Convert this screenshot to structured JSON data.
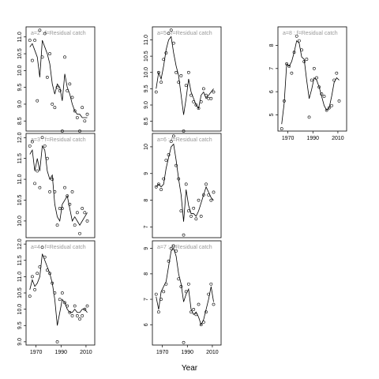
{
  "xlabel": "Year",
  "chart_data": [
    {
      "type": "line",
      "label": "a=2 : f=Residual catch",
      "x": [
        1965,
        1967,
        1969,
        1971,
        1973,
        1975,
        1977,
        1979,
        1981,
        1983,
        1985,
        1987,
        1989,
        1991,
        1993,
        1995,
        1997,
        1999,
        2001,
        2003,
        2005,
        2007,
        2009,
        2011
      ],
      "series": [
        {
          "style": "line",
          "color": "#000000",
          "values": [
            10.7,
            10.8,
            10.6,
            10.4,
            9.8,
            10.9,
            10.7,
            10.5,
            10.2,
            9.6,
            9.3,
            9.6,
            9.5,
            9.1,
            9.9,
            9.5,
            9.3,
            9.0,
            8.8,
            8.7,
            8.7,
            8.6,
            8.6,
            8.6
          ]
        },
        {
          "style": "points",
          "color": "#000000",
          "values": [
            10.9,
            10.3,
            10.9,
            9.1,
            11.2,
            10.4,
            11.1,
            9.8,
            10.5,
            9.0,
            8.9,
            9.5,
            9.4,
            8.2,
            10.4,
            9.4,
            9.6,
            9.2,
            8.8,
            8.6,
            8.2,
            8.9,
            8.5,
            8.7
          ]
        }
      ],
      "xlim": [
        1962,
        2017
      ],
      "xticks": [
        1970,
        1990,
        2010
      ],
      "ylim": [
        8.2,
        11.3
      ],
      "yticks": [
        8.5,
        {
          "value": 9,
          "label": "9.0"
        },
        9.5,
        {
          "value": 10,
          "label": "10.0"
        },
        10.5,
        {
          "value": 11,
          "label": "11.0"
        }
      ]
    },
    {
      "type": "line",
      "label": "a=3 : f=Residual catch",
      "x": [
        1965,
        1967,
        1969,
        1971,
        1973,
        1975,
        1977,
        1979,
        1981,
        1983,
        1985,
        1987,
        1989,
        1991,
        1993,
        1995,
        1997,
        1999,
        2001,
        2003,
        2005,
        2007,
        2009,
        2011
      ],
      "series": [
        {
          "style": "line",
          "color": "#000000",
          "values": [
            11.6,
            11.7,
            11.2,
            11.5,
            11.2,
            11.8,
            11.7,
            11.2,
            11.0,
            11.1,
            10.4,
            10.1,
            10.0,
            10.4,
            10.5,
            10.6,
            10.3,
            10.0,
            10.1,
            10.0,
            9.9,
            10.0,
            10.1,
            10.2
          ]
        },
        {
          "style": "points",
          "color": "#000000",
          "values": [
            11.8,
            11.9,
            10.9,
            11.2,
            10.8,
            12.0,
            11.8,
            11.5,
            10.7,
            11.0,
            10.7,
            9.9,
            10.3,
            10.3,
            10.8,
            10.6,
            10.4,
            10.7,
            9.9,
            10.2,
            9.7,
            10.3,
            10.2,
            10.0
          ]
        }
      ],
      "xlim": [
        1962,
        2017
      ],
      "xticks": [
        1970,
        1990,
        2010
      ],
      "ylim": [
        9.6,
        12.1
      ],
      "yticks": [
        {
          "value": 10,
          "label": "10.0"
        },
        10.5,
        {
          "value": 11,
          "label": "11.0"
        },
        11.5,
        {
          "value": 12,
          "label": "12.0"
        }
      ]
    },
    {
      "type": "line",
      "label": "a=4 : f=Residual catch",
      "x": [
        1965,
        1967,
        1969,
        1971,
        1973,
        1975,
        1977,
        1979,
        1981,
        1983,
        1985,
        1987,
        1989,
        1991,
        1993,
        1995,
        1997,
        1999,
        2001,
        2003,
        2005,
        2007,
        2009,
        2011
      ],
      "series": [
        {
          "style": "line",
          "color": "#000000",
          "values": [
            10.6,
            10.9,
            10.7,
            10.8,
            11.0,
            11.7,
            11.5,
            11.3,
            11.1,
            10.8,
            10.3,
            9.5,
            9.9,
            10.3,
            10.2,
            10.0,
            9.9,
            9.9,
            10.0,
            9.9,
            9.9,
            10.0,
            10.0,
            9.9
          ]
        },
        {
          "style": "points",
          "color": "#000000",
          "values": [
            10.4,
            11.0,
            10.6,
            11.1,
            11.3,
            11.9,
            11.6,
            11.2,
            11.1,
            10.8,
            10.5,
            9.0,
            10.3,
            10.5,
            10.2,
            10.1,
            9.9,
            9.8,
            10.1,
            9.8,
            9.7,
            9.8,
            10.0,
            10.1
          ]
        }
      ],
      "xlim": [
        1962,
        2017
      ],
      "xticks": [
        1970,
        1990,
        2010
      ],
      "ylim": [
        8.9,
        12.1
      ],
      "yticks": [
        {
          "value": 9,
          "label": "9.0"
        },
        9.5,
        {
          "value": 10,
          "label": "10.0"
        },
        10.5,
        {
          "value": 11,
          "label": "11.0"
        },
        11.5,
        {
          "value": 12,
          "label": "12.0"
        }
      ]
    },
    {
      "type": "line",
      "label": "a=5 : f=Residual catch",
      "x": [
        1965,
        1967,
        1969,
        1971,
        1973,
        1975,
        1977,
        1979,
        1981,
        1983,
        1985,
        1987,
        1989,
        1991,
        1993,
        1995,
        1997,
        1999,
        2001,
        2003,
        2005,
        2007,
        2009,
        2011
      ],
      "series": [
        {
          "style": "line",
          "color": "#000000",
          "values": [
            9.5,
            10.0,
            9.8,
            10.2,
            10.7,
            11.0,
            11.1,
            10.6,
            10.2,
            9.9,
            9.3,
            8.7,
            9.2,
            9.8,
            9.4,
            9.2,
            9.0,
            8.9,
            9.3,
            9.4,
            9.2,
            9.3,
            9.4,
            9.5
          ]
        },
        {
          "style": "points",
          "color": "#000000",
          "values": [
            9.4,
            10.0,
            9.7,
            10.4,
            10.6,
            11.2,
            11.3,
            10.9,
            10.0,
            9.7,
            9.9,
            8.2,
            9.6,
            10.0,
            9.3,
            9.1,
            9.0,
            8.9,
            9.1,
            9.5,
            9.3,
            9.2,
            9.2,
            9.4
          ]
        }
      ],
      "xlim": [
        1962,
        2017
      ],
      "xticks": [
        1970,
        1990,
        2010
      ],
      "ylim": [
        8.2,
        11.4
      ],
      "yticks": [
        8.5,
        {
          "value": 9,
          "label": "9.0"
        },
        9.5,
        {
          "value": 10,
          "label": "10.0"
        },
        10.5,
        {
          "value": 11,
          "label": "11.0"
        }
      ]
    },
    {
      "type": "line",
      "label": "a=6 : f=Residual catch",
      "x": [
        1965,
        1967,
        1969,
        1971,
        1973,
        1975,
        1977,
        1979,
        1981,
        1983,
        1985,
        1987,
        1989,
        1991,
        1993,
        1995,
        1997,
        1999,
        2001,
        2003,
        2005,
        2007,
        2009,
        2011
      ],
      "series": [
        {
          "style": "line",
          "color": "#000000",
          "values": [
            8.5,
            8.6,
            8.5,
            8.6,
            9.2,
            9.6,
            10.0,
            10.1,
            9.5,
            8.8,
            8.2,
            7.2,
            8.4,
            7.8,
            7.5,
            7.5,
            7.4,
            7.6,
            7.9,
            8.2,
            8.5,
            8.3,
            8.1,
            8.0
          ]
        },
        {
          "style": "points",
          "color": "#000000",
          "values": [
            8.5,
            8.6,
            8.4,
            8.8,
            9.5,
            9.7,
            10.2,
            10.4,
            9.3,
            8.8,
            7.6,
            6.7,
            8.6,
            7.6,
            7.4,
            7.7,
            7.3,
            8.0,
            7.4,
            8.2,
            8.6,
            8.2,
            8.0,
            8.3
          ]
        }
      ],
      "xlim": [
        1962,
        2017
      ],
      "xticks": [
        1970,
        1990,
        2010
      ],
      "ylim": [
        6.6,
        10.5
      ],
      "yticks": [
        7,
        8,
        9,
        10
      ]
    },
    {
      "type": "line",
      "label": "a=7 : f=Residual catch",
      "x": [
        1965,
        1967,
        1969,
        1971,
        1973,
        1975,
        1977,
        1979,
        1981,
        1983,
        1985,
        1987,
        1989,
        1991,
        1993,
        1995,
        1997,
        1999,
        2001,
        2003,
        2005,
        2007,
        2009,
        2011
      ],
      "series": [
        {
          "style": "line",
          "color": "#000000",
          "values": [
            7.1,
            6.6,
            7.3,
            7.5,
            7.7,
            8.3,
            8.9,
            9.0,
            8.7,
            8.0,
            7.6,
            6.9,
            7.2,
            7.4,
            6.6,
            6.4,
            6.5,
            6.3,
            6.0,
            6.2,
            6.6,
            7.0,
            7.5,
            6.9
          ]
        },
        {
          "style": "points",
          "color": "#000000",
          "values": [
            7.2,
            6.5,
            7.0,
            7.3,
            7.6,
            8.5,
            9.0,
            9.1,
            8.9,
            7.8,
            7.5,
            5.3,
            7.3,
            7.6,
            6.5,
            6.6,
            6.4,
            6.8,
            6.0,
            6.1,
            6.5,
            7.2,
            7.6,
            6.8
          ]
        }
      ],
      "xlim": [
        1962,
        2017
      ],
      "xticks": [
        1970,
        1990,
        2010
      ],
      "ylim": [
        5.2,
        9.3
      ],
      "yticks": [
        6,
        7,
        8,
        9
      ]
    },
    {
      "type": "line",
      "label": "a=8 : f=Residual catch",
      "x": [
        1965,
        1967,
        1969,
        1971,
        1973,
        1975,
        1977,
        1979,
        1981,
        1983,
        1985,
        1987,
        1989,
        1991,
        1993,
        1995,
        1997,
        1999,
        2001,
        2003,
        2005,
        2007,
        2009,
        2011
      ],
      "series": [
        {
          "style": "line",
          "color": "#000000",
          "values": [
            4.6,
            5.5,
            7.2,
            7.1,
            7.3,
            7.7,
            8.2,
            8.1,
            7.5,
            7.4,
            6.5,
            5.7,
            6.1,
            6.6,
            6.5,
            6.2,
            5.8,
            5.4,
            5.2,
            5.3,
            5.8,
            6.4,
            6.6,
            6.5
          ]
        },
        {
          "style": "points",
          "color": "#000000",
          "values": [
            4.4,
            5.6,
            7.2,
            7.1,
            6.8,
            7.7,
            8.4,
            8.2,
            7.8,
            7.3,
            7.4,
            4.9,
            6.5,
            7.0,
            6.6,
            6.2,
            5.9,
            5.8,
            5.2,
            5.3,
            5.4,
            6.5,
            6.8,
            5.6
          ]
        }
      ],
      "xlim": [
        1962,
        2017
      ],
      "xticks": [
        1970,
        1990,
        2010
      ],
      "ylim": [
        4.3,
        8.8
      ],
      "yticks": [
        5,
        6,
        7,
        8
      ]
    }
  ]
}
